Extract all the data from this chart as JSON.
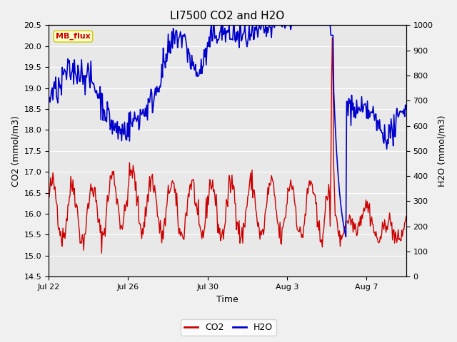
{
  "title": "LI7500 CO2 and H2O",
  "xlabel": "Time",
  "ylabel_left": "CO2 (mmol/m3)",
  "ylabel_right": "H2O (mmol/m3)",
  "ylim_left": [
    14.5,
    20.5
  ],
  "ylim_right": [
    0,
    1000
  ],
  "yticks_left": [
    14.5,
    15.0,
    15.5,
    16.0,
    16.5,
    17.0,
    17.5,
    18.0,
    18.5,
    19.0,
    19.5,
    20.0,
    20.5
  ],
  "yticks_right": [
    0,
    100,
    200,
    300,
    400,
    500,
    600,
    700,
    800,
    900,
    1000
  ],
  "xtick_labels": [
    "Jul 22",
    "Jul 26",
    "Jul 30",
    "Aug 3",
    "Aug 7"
  ],
  "xtick_positions": [
    0,
    4,
    8,
    12,
    16
  ],
  "xlim": [
    0,
    18
  ],
  "co2_color": "#cc0000",
  "h2o_color": "#0000cc",
  "fig_facecolor": "#f0f0f0",
  "plot_facecolor": "#e8e8e8",
  "grid_color": "#ffffff",
  "legend_box_facecolor": "#ffffcc",
  "legend_box_edgecolor": "#cccc00",
  "label_text": "MB_flux",
  "label_text_color": "#cc0000",
  "title_fontsize": 11,
  "axis_label_fontsize": 9,
  "tick_fontsize": 8,
  "legend_fontsize": 9,
  "co2_linewidth": 1.0,
  "h2o_linewidth": 1.2
}
